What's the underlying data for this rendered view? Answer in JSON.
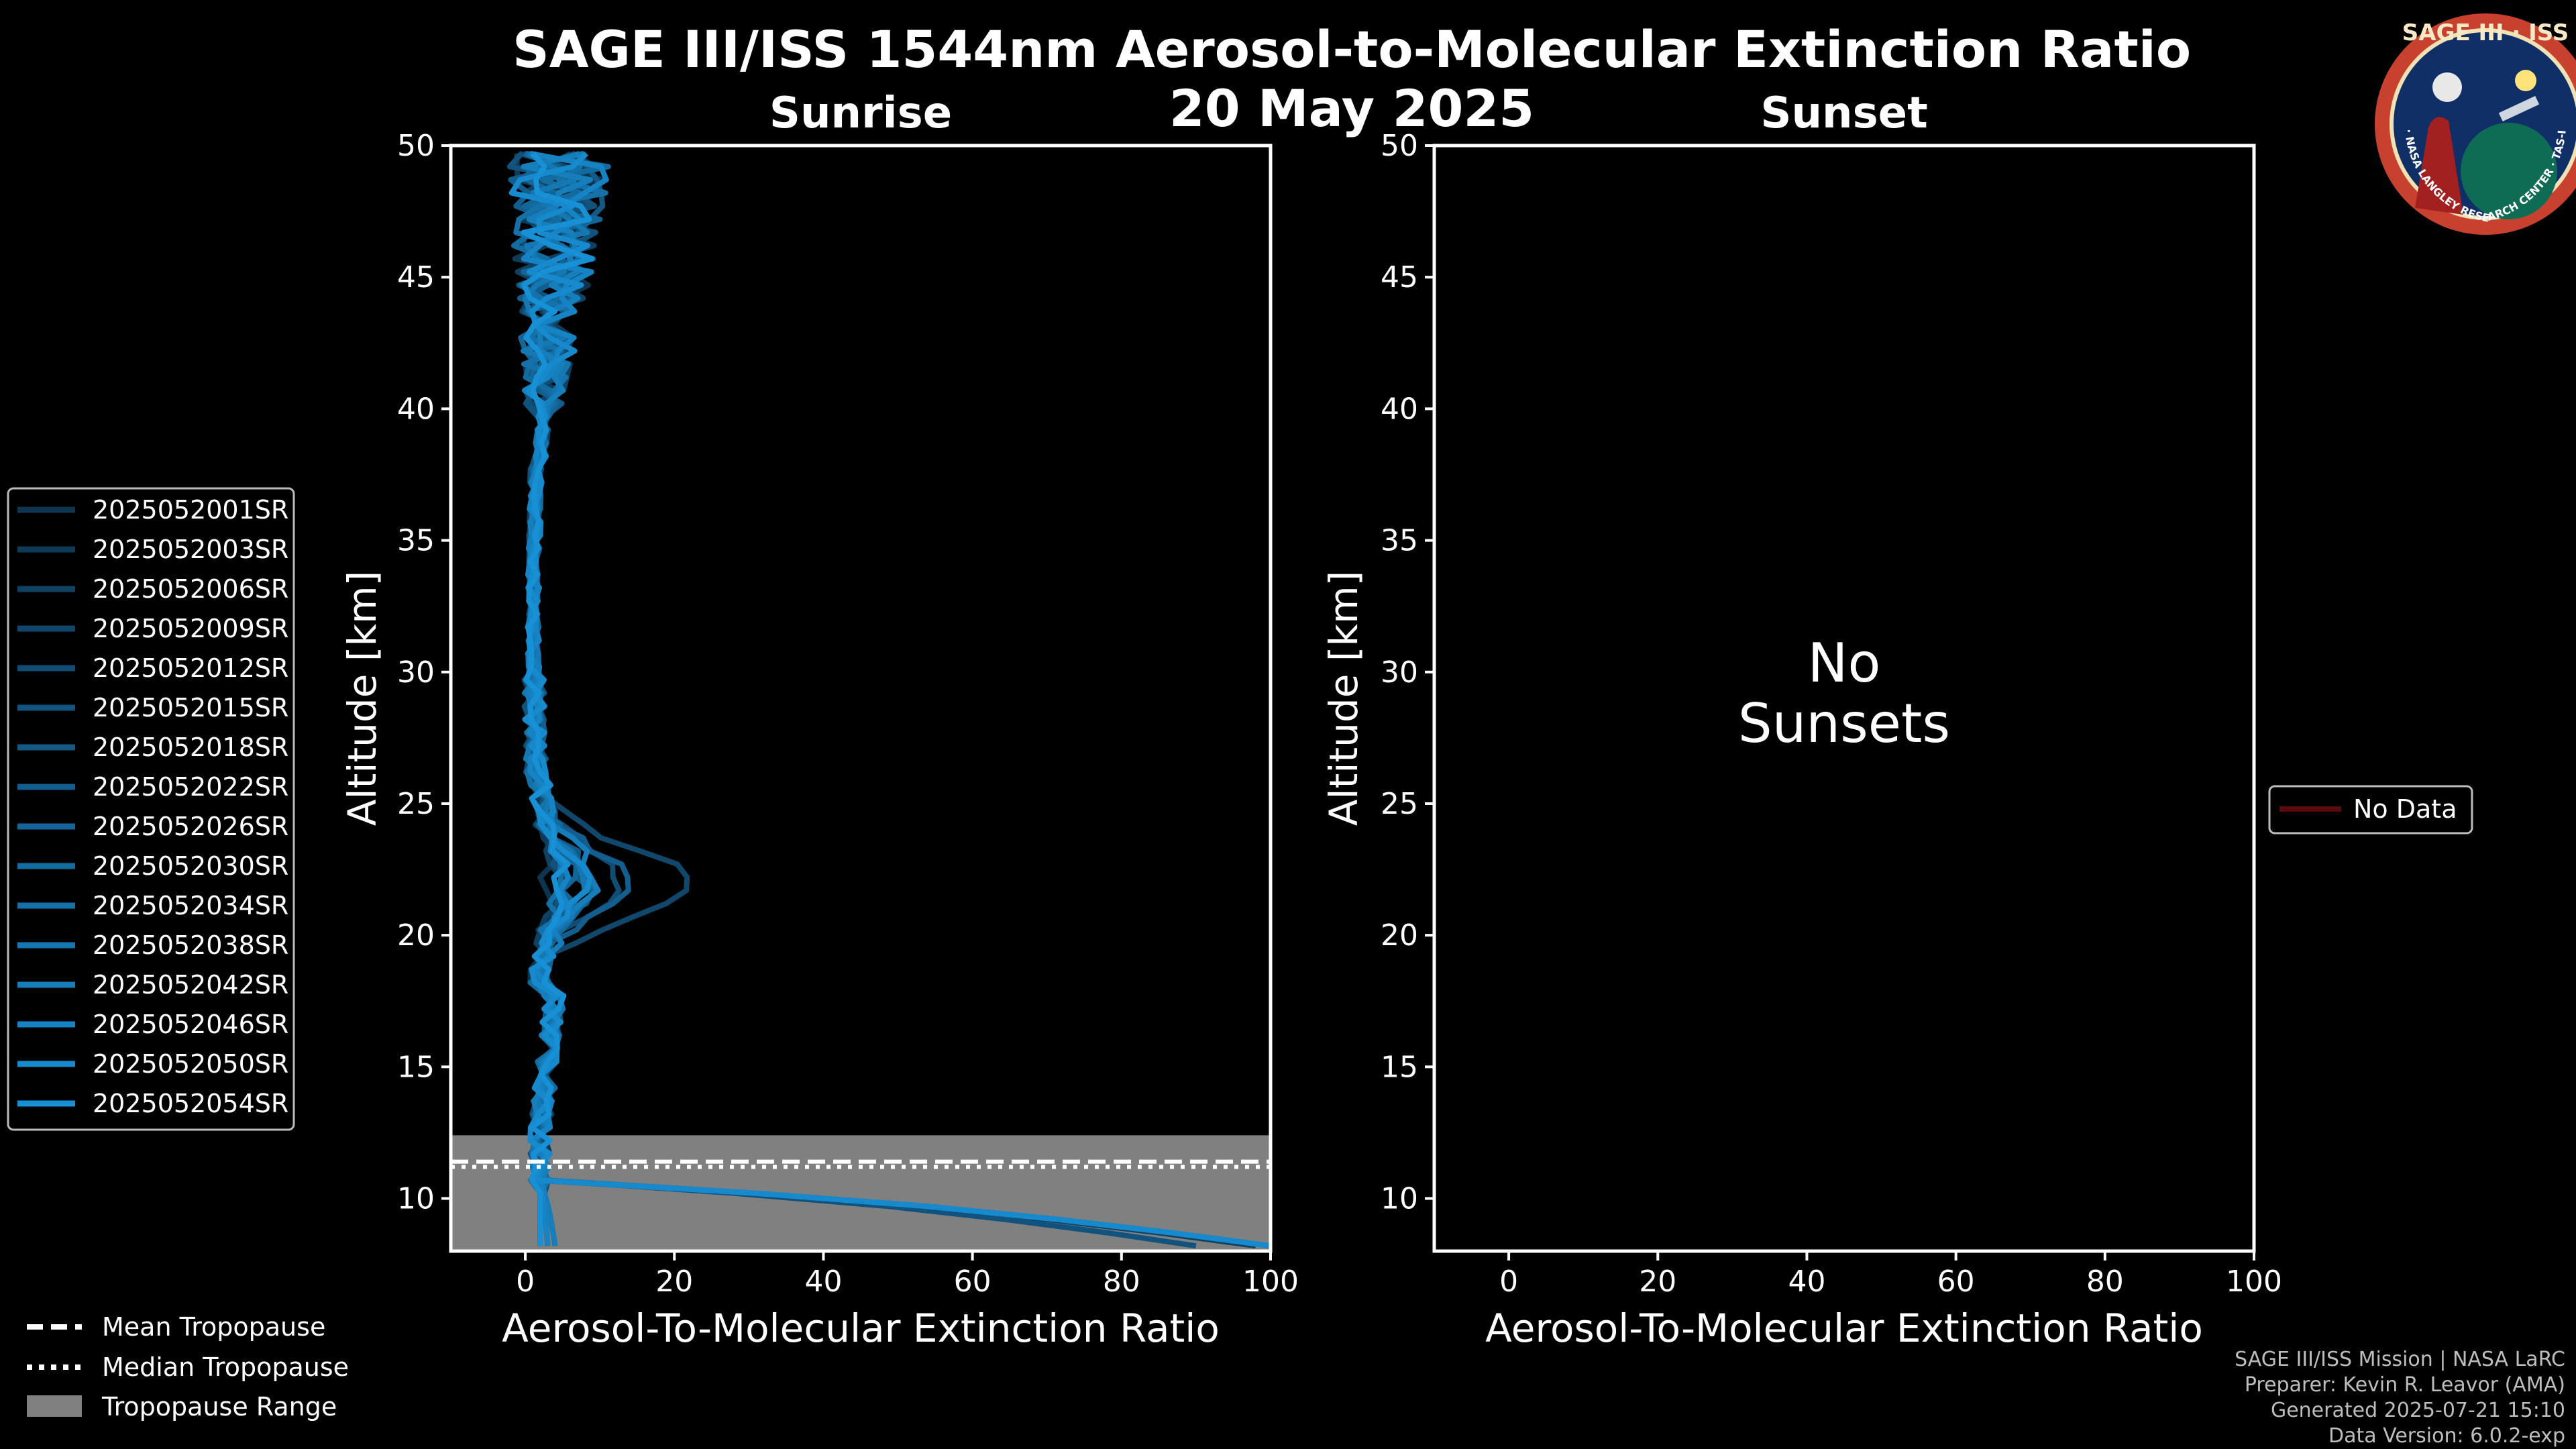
{
  "title": "SAGE III/ISS 1544nm Aerosol-to-Molecular Extinction Ratio",
  "date": "20 May 2025",
  "logo": {
    "text_top": "SAGE III · ISS",
    "ring_text": "BALL · NASA LANGLEY RESEARCH CENTER · TAS-I · ESA"
  },
  "colors": {
    "background": "#000000",
    "series_dark": "#0e3550",
    "series_light": "#1790d6",
    "tropopause_range": "#808080",
    "no_data": "#5a0a0a"
  },
  "chart_data": [
    {
      "type": "line",
      "panel": "sunrise",
      "title": "Sunrise",
      "xlabel": "Aerosol-To-Molecular Extinction Ratio",
      "ylabel": "Altitude [km]",
      "xlim": [
        -10,
        100
      ],
      "ylim": [
        8,
        50
      ],
      "xticks": [
        0,
        20,
        40,
        60,
        80,
        100
      ],
      "yticks": [
        10,
        15,
        20,
        25,
        30,
        35,
        40,
        45,
        50
      ],
      "tropopause": {
        "mean_km": 11.4,
        "median_km": 11.2,
        "range_km": [
          8.0,
          12.4
        ]
      },
      "series": [
        {
          "name": "2025052001SR",
          "seed": 1,
          "peak22": 3,
          "lowx": 2
        },
        {
          "name": "2025052003SR",
          "seed": 2,
          "peak22": 6,
          "lowx": 3
        },
        {
          "name": "2025052006SR",
          "seed": 3,
          "peak22": 4,
          "lowx": 98
        },
        {
          "name": "2025052009SR",
          "seed": 4,
          "peak22": 23,
          "lowx": 2
        },
        {
          "name": "2025052012SR",
          "seed": 5,
          "peak22": 12,
          "lowx": 4
        },
        {
          "name": "2025052015SR",
          "seed": 6,
          "peak22": 5,
          "lowx": 90
        },
        {
          "name": "2025052018SR",
          "seed": 7,
          "peak22": 8,
          "lowx": 3
        },
        {
          "name": "2025052022SR",
          "seed": 8,
          "peak22": 14,
          "lowx": 2
        },
        {
          "name": "2025052026SR",
          "seed": 9,
          "peak22": 6,
          "lowx": 100
        },
        {
          "name": "2025052030SR",
          "seed": 10,
          "peak22": 9,
          "lowx": 3
        },
        {
          "name": "2025052034SR",
          "seed": 11,
          "peak22": 5,
          "lowx": 2
        },
        {
          "name": "2025052038SR",
          "seed": 12,
          "peak22": 7,
          "lowx": 100
        },
        {
          "name": "2025052042SR",
          "seed": 13,
          "peak22": 10,
          "lowx": 4
        },
        {
          "name": "2025052046SR",
          "seed": 14,
          "peak22": 6,
          "lowx": 3
        },
        {
          "name": "2025052050SR",
          "seed": 15,
          "peak22": 8,
          "lowx": 100
        },
        {
          "name": "2025052054SR",
          "seed": 16,
          "peak22": 5,
          "lowx": 2
        }
      ],
      "legend_position": "left"
    },
    {
      "type": "line",
      "panel": "sunset",
      "title": "Sunset",
      "xlabel": "Aerosol-To-Molecular Extinction Ratio",
      "ylabel": "Altitude [km]",
      "xlim": [
        -10,
        100
      ],
      "ylim": [
        8,
        50
      ],
      "xticks": [
        0,
        20,
        40,
        60,
        80,
        100
      ],
      "yticks": [
        10,
        15,
        20,
        25,
        30,
        35,
        40,
        45,
        50
      ],
      "annotation_line1": "No",
      "annotation_line2": "Sunsets",
      "series": [],
      "legend": [
        "No Data"
      ],
      "legend_position": "right"
    }
  ],
  "bottom_legend": {
    "mean": "Mean Tropopause",
    "median": "Median Tropopause",
    "range": "Tropopause Range"
  },
  "footer": [
    "SAGE III/ISS Mission | NASA LaRC",
    "Preparer: Kevin R. Leavor (AMA)",
    "Generated 2025-07-21 15:10",
    "Data Version: 6.0.2-exp"
  ]
}
